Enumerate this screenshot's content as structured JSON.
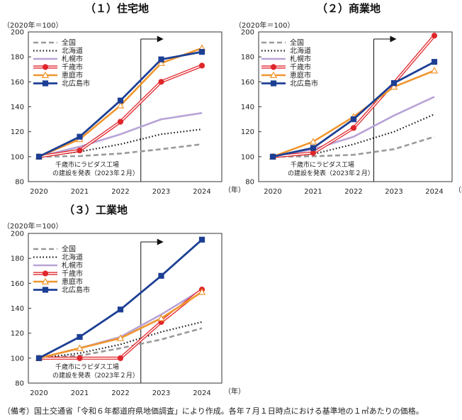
{
  "note": "（備考）国土交通省「令和６年都道府県地価調査」により作成。各年７月１日時点における基準地の１㎡あたりの価格。",
  "chart_data": [
    {
      "type": "line",
      "id": "residential",
      "title": "（１）住宅地",
      "unit_label": "（2020年＝100）",
      "x": [
        "2020",
        "2021",
        "2022",
        "2023",
        "2024"
      ],
      "x_suffix": "（年）",
      "ylim": [
        80,
        200
      ],
      "yticks": [
        80,
        100,
        120,
        140,
        160,
        180,
        200
      ],
      "annotation": [
        "千歳市にラピダス工場",
        "の建設を発表（2023年２月）"
      ],
      "event_x": 2.5,
      "series": [
        {
          "name": "全国",
          "values": [
            100,
            100.5,
            102.5,
            106,
            110
          ]
        },
        {
          "name": "北海道",
          "values": [
            100,
            104,
            110,
            118,
            122
          ]
        },
        {
          "name": "札幌市",
          "values": [
            100,
            108,
            118,
            130,
            135
          ]
        },
        {
          "name": "千歳市",
          "values": [
            100,
            105,
            128,
            160,
            173
          ]
        },
        {
          "name": "恵庭市",
          "values": [
            100,
            114,
            141,
            175,
            187
          ]
        },
        {
          "name": "北広島市",
          "values": [
            100,
            116,
            145,
            178,
            184
          ]
        }
      ]
    },
    {
      "type": "line",
      "id": "commercial",
      "title": "（２）商業地",
      "unit_label": "（2020年＝100）",
      "x": [
        "2020",
        "2021",
        "2022",
        "2023",
        "2024"
      ],
      "x_suffix": "（年）",
      "ylim": [
        80,
        200
      ],
      "yticks": [
        80,
        100,
        120,
        140,
        160,
        180,
        200
      ],
      "annotation": [
        "千歳市にラピダス工場",
        "の建設を発表（2023年２月）"
      ],
      "event_x": 2.5,
      "series": [
        {
          "name": "全国",
          "values": [
            100,
            100.3,
            101.5,
            106,
            116
          ]
        },
        {
          "name": "北海道",
          "values": [
            100,
            102,
            110,
            120,
            134
          ]
        },
        {
          "name": "札幌市",
          "values": [
            100,
            106,
            116,
            133,
            148
          ]
        },
        {
          "name": "千歳市",
          "values": [
            100,
            103,
            123,
            159,
            197
          ]
        },
        {
          "name": "恵庭市",
          "values": [
            100,
            112,
            132,
            156,
            169
          ]
        },
        {
          "name": "北広島市",
          "values": [
            100,
            107,
            130,
            159,
            176
          ]
        }
      ]
    },
    {
      "type": "line",
      "id": "industrial",
      "title": "（３）工業地",
      "unit_label": "（2020年＝100）",
      "x": [
        "2020",
        "2021",
        "2022",
        "2023",
        "2024"
      ],
      "x_suffix": "（年）",
      "ylim": [
        80,
        200
      ],
      "yticks": [
        80,
        100,
        120,
        140,
        160,
        180,
        200
      ],
      "annotation": [
        "千歳市にラピダス工場",
        "の建設を発表（2023年２月）"
      ],
      "event_x": 2.5,
      "series": [
        {
          "name": "全国",
          "values": [
            100,
            102,
            108,
            115,
            124
          ]
        },
        {
          "name": "北海道",
          "values": [
            100,
            104,
            111,
            121,
            129
          ]
        },
        {
          "name": "札幌市",
          "values": [
            100,
            108,
            117,
            135,
            155
          ]
        },
        {
          "name": "千歳市",
          "values": [
            100,
            100,
            100,
            129,
            155
          ]
        },
        {
          "name": "恵庭市",
          "values": [
            100,
            108,
            116,
            132,
            153
          ]
        },
        {
          "name": "北広島市",
          "values": [
            100,
            117,
            139,
            166,
            195
          ]
        }
      ]
    }
  ],
  "styles": [
    {
      "name": "全国",
      "color": "#9a9a9a",
      "dash": "7,4",
      "width": 2.6,
      "marker": "none"
    },
    {
      "name": "北海道",
      "color": "#111111",
      "dash": "1.5,3",
      "width": 2.2,
      "marker": "none"
    },
    {
      "name": "札幌市",
      "color": "#b8a3d6",
      "dash": "",
      "width": 2.6,
      "marker": "none"
    },
    {
      "name": "千歳市",
      "color": "#e0262b",
      "dash": "",
      "width": 1.8,
      "marker": "circle",
      "double": true
    },
    {
      "name": "恵庭市",
      "color": "#f0962e",
      "dash": "",
      "width": 2.6,
      "marker": "triangle"
    },
    {
      "name": "北広島市",
      "color": "#1c3f94",
      "dash": "",
      "width": 2.8,
      "marker": "square"
    }
  ]
}
